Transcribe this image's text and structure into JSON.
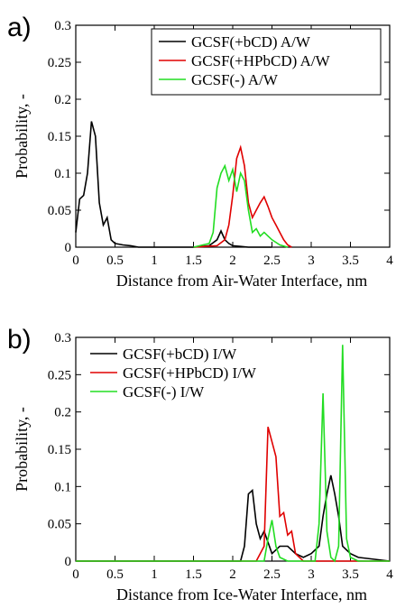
{
  "chart_data": [
    {
      "type": "line",
      "panel_label": "a)",
      "x_label": "Distance from Air-Water Interface, nm",
      "y_label": "Probability, -",
      "xlim": [
        0,
        4
      ],
      "ylim": [
        0,
        0.3
      ],
      "xticks": [
        0,
        0.5,
        1,
        1.5,
        2,
        2.5,
        3,
        3.5,
        4
      ],
      "yticks": [
        0,
        0.05,
        0.1,
        0.15,
        0.2,
        0.25,
        0.3
      ],
      "legend": "upper right",
      "legend_frame": true,
      "series": [
        {
          "name": "GCSF(+bCD) A/W",
          "color": "#000000",
          "x": [
            0,
            0.05,
            0.1,
            0.15,
            0.2,
            0.25,
            0.3,
            0.35,
            0.4,
            0.45,
            0.5,
            0.6,
            0.7,
            0.8,
            1.0,
            1.5,
            1.7,
            1.8,
            1.85,
            1.9,
            1.95,
            2.0,
            2.1,
            2.2,
            2.5
          ],
          "values": [
            0.02,
            0.065,
            0.07,
            0.1,
            0.17,
            0.15,
            0.06,
            0.03,
            0.04,
            0.01,
            0.005,
            0.003,
            0.002,
            0,
            0,
            0,
            0.002,
            0.01,
            0.022,
            0.01,
            0.005,
            0.002,
            0.001,
            0,
            0
          ]
        },
        {
          "name": "GCSF(+HPbCD) A/W",
          "color": "#e00000",
          "x": [
            1.5,
            1.8,
            1.9,
            1.95,
            2.0,
            2.05,
            2.1,
            2.15,
            2.2,
            2.25,
            2.3,
            2.35,
            2.4,
            2.45,
            2.5,
            2.55,
            2.6,
            2.65,
            2.7,
            2.75
          ],
          "values": [
            0,
            0.002,
            0.01,
            0.03,
            0.07,
            0.12,
            0.135,
            0.11,
            0.06,
            0.04,
            0.05,
            0.06,
            0.068,
            0.055,
            0.04,
            0.03,
            0.02,
            0.01,
            0.003,
            0
          ]
        },
        {
          "name": "GCSF(-) A/W",
          "color": "#22dd22",
          "x": [
            1.5,
            1.7,
            1.75,
            1.8,
            1.85,
            1.9,
            1.95,
            2.0,
            2.05,
            2.1,
            2.15,
            2.2,
            2.25,
            2.3,
            2.35,
            2.4,
            2.45,
            2.5,
            2.6,
            2.7
          ],
          "values": [
            0,
            0.005,
            0.02,
            0.08,
            0.1,
            0.11,
            0.09,
            0.105,
            0.075,
            0.1,
            0.09,
            0.05,
            0.02,
            0.025,
            0.015,
            0.02,
            0.015,
            0.01,
            0.003,
            0
          ]
        }
      ]
    },
    {
      "type": "line",
      "panel_label": "b)",
      "x_label": "Distance from Ice-Water Interface, nm",
      "y_label": "Probability, -",
      "xlim": [
        0,
        4
      ],
      "ylim": [
        0,
        0.3
      ],
      "xticks": [
        0,
        0.5,
        1,
        1.5,
        2,
        2.5,
        3,
        3.5,
        4
      ],
      "yticks": [
        0,
        0.05,
        0.1,
        0.15,
        0.2,
        0.25,
        0.3
      ],
      "legend": "upper left",
      "legend_frame": false,
      "series": [
        {
          "name": "GCSF(+bCD) I/W",
          "color": "#000000",
          "x": [
            0,
            2.1,
            2.15,
            2.2,
            2.25,
            2.3,
            2.35,
            2.4,
            2.5,
            2.6,
            2.7,
            2.8,
            2.9,
            3.0,
            3.1,
            3.15,
            3.2,
            3.25,
            3.3,
            3.35,
            3.4,
            3.5,
            3.6,
            4
          ],
          "values": [
            0,
            0,
            0.02,
            0.09,
            0.095,
            0.05,
            0.03,
            0.04,
            0.01,
            0.02,
            0.02,
            0.01,
            0.005,
            0.01,
            0.02,
            0.06,
            0.09,
            0.115,
            0.09,
            0.06,
            0.02,
            0.01,
            0.005,
            0
          ]
        },
        {
          "name": "GCSF(+HPbCD) I/W",
          "color": "#e00000",
          "x": [
            0,
            2.3,
            2.4,
            2.45,
            2.5,
            2.55,
            2.6,
            2.65,
            2.7,
            2.75,
            2.8,
            2.85,
            2.9,
            4
          ],
          "values": [
            0,
            0,
            0.02,
            0.18,
            0.16,
            0.14,
            0.06,
            0.065,
            0.035,
            0.04,
            0.01,
            0.005,
            0,
            0
          ]
        },
        {
          "name": "GCSF(-) I/W",
          "color": "#22dd22",
          "x": [
            0,
            2.4,
            2.45,
            2.5,
            2.55,
            2.6,
            2.7,
            3.05,
            3.1,
            3.15,
            3.2,
            3.25,
            3.3,
            3.35,
            3.4,
            3.45,
            3.5,
            3.6,
            4
          ],
          "values": [
            0,
            0,
            0.03,
            0.055,
            0.02,
            0.005,
            0,
            0,
            0.05,
            0.225,
            0.04,
            0.005,
            0,
            0.02,
            0.29,
            0.03,
            0.005,
            0,
            0
          ]
        }
      ]
    }
  ]
}
